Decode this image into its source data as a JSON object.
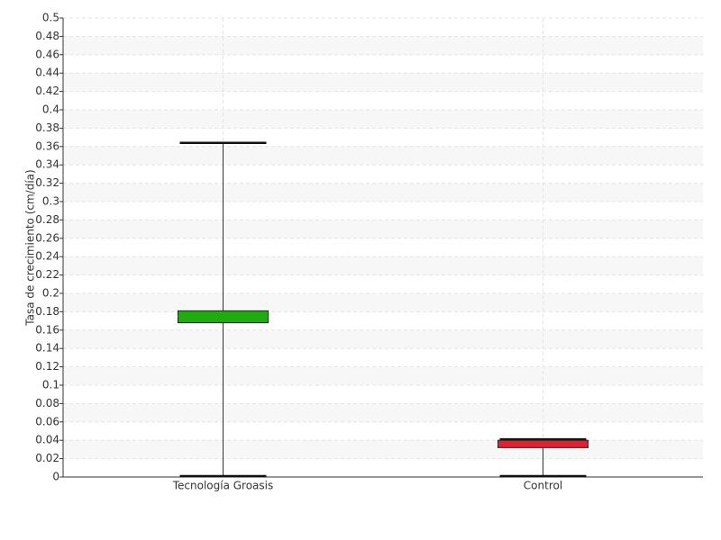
{
  "chart_data": {
    "type": "box",
    "y_label": "Tasa de crecimiento (cm/día)",
    "categories": [
      "Tecnología Groasis",
      "Control"
    ],
    "boxes": [
      {
        "whislo": 0,
        "q1": 0.168,
        "med": 0.175,
        "q3": 0.181,
        "whishi": 0.364,
        "color": "#22aa11"
      },
      {
        "whislo": 0,
        "q1": 0.032,
        "med": 0.036,
        "q3": 0.04,
        "whishi": 0.041,
        "color": "#dd2233"
      }
    ],
    "ylim": [
      0,
      0.5
    ],
    "yticks": [
      0,
      0.02,
      0.04,
      0.06,
      0.08,
      0.1,
      0.12,
      0.14,
      0.16,
      0.18,
      0.2,
      0.22,
      0.24,
      0.26,
      0.28,
      0.3,
      0.32,
      0.34,
      0.36,
      0.38,
      0.4,
      0.42,
      0.44,
      0.46,
      0.48,
      0.5
    ],
    "grid": true
  }
}
